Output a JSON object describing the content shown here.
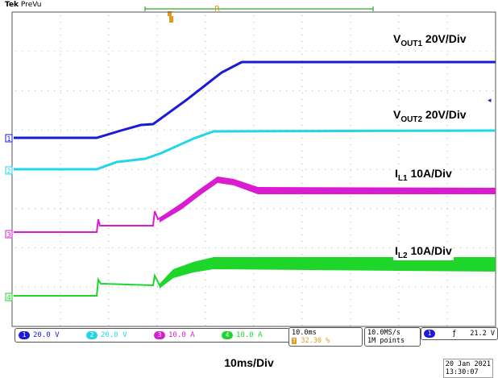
{
  "header": {
    "brand": "Tek",
    "mode": "PreVu"
  },
  "trace_labels": {
    "vout1": {
      "main": "V",
      "sub": "OUT1",
      "rest": " 20V/Div"
    },
    "vout2": {
      "main": "V",
      "sub": "OUT2",
      "rest": " 20V/Div"
    },
    "il1": {
      "main": "I",
      "sub": "L1",
      "rest": " 10A/Div"
    },
    "il2": {
      "main": "I",
      "sub": "L2",
      "rest": " 10A/Div"
    }
  },
  "channels": [
    {
      "num": "1",
      "scale": "20.0 V",
      "color": "#1a1ad8"
    },
    {
      "num": "2",
      "scale": "20.0 V",
      "color": "#22d6e8"
    },
    {
      "num": "3",
      "scale": "10.0 A",
      "color": "#d91cd0"
    },
    {
      "num": "4",
      "scale": "10.0 A",
      "color": "#1ed62a"
    }
  ],
  "timebase": {
    "value": "10.0ms",
    "position": "32.30 %"
  },
  "acquisition": {
    "rate": "10.0MS/s",
    "points": "1M points"
  },
  "trigger": {
    "channel": "1",
    "slope": "rising",
    "level": "21.2 V"
  },
  "time_per_div_label": "10ms/Div",
  "timestamp": {
    "date": "20 Jan  2021",
    "time": "13:30:07"
  },
  "colors": {
    "grid": "#b0b0b0",
    "frame": "#555555"
  }
}
